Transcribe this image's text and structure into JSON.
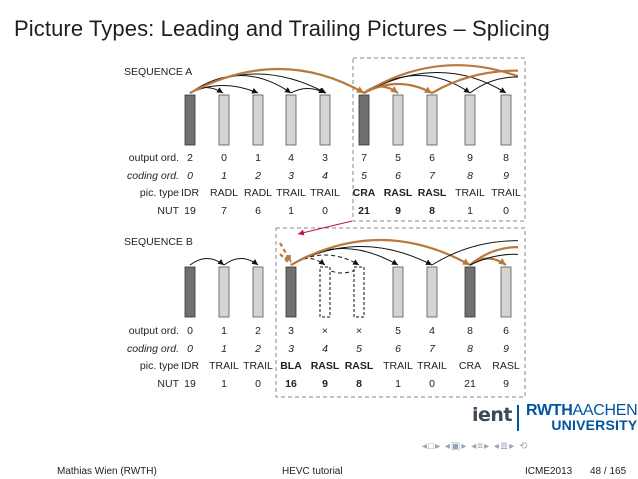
{
  "title": "Picture Types: Leading and Trailing Pictures – Splicing",
  "sequence_a": {
    "label": "SEQUENCE A",
    "row_labels": [
      "output ord.",
      "coding ord.",
      "pic. type",
      "NUT"
    ],
    "output_ord": [
      "2",
      "0",
      "1",
      "4",
      "3",
      "7",
      "5",
      "6",
      "9",
      "8"
    ],
    "coding_ord": [
      "0",
      "1",
      "2",
      "3",
      "4",
      "5",
      "6",
      "7",
      "8",
      "9"
    ],
    "pic_type": [
      "IDR",
      "RADL",
      "RADL",
      "TRAIL",
      "TRAIL",
      "CRA",
      "RASL",
      "RASL",
      "TRAIL",
      "TRAIL"
    ],
    "nut": [
      "19",
      "7",
      "6",
      "1",
      "0",
      "21",
      "9",
      "8",
      "1",
      "0"
    ]
  },
  "sequence_b": {
    "label": "SEQUENCE B",
    "row_labels": [
      "output ord.",
      "coding ord.",
      "pic. type",
      "NUT"
    ],
    "output_ord": [
      "0",
      "1",
      "2",
      "3",
      "×",
      "×",
      "5",
      "4",
      "8",
      "6"
    ],
    "coding_ord": [
      "0",
      "1",
      "2",
      "3",
      "4",
      "5",
      "6",
      "7",
      "8",
      "9"
    ],
    "pic_type": [
      "IDR",
      "TRAIL",
      "TRAIL",
      "BLA",
      "RASL",
      "RASL",
      "TRAIL",
      "TRAIL",
      "CRA",
      "RASL"
    ],
    "nut": [
      "19",
      "1",
      "0",
      "16",
      "9",
      "8",
      "1",
      "0",
      "21",
      "9"
    ]
  },
  "colors": {
    "irap": "#707070",
    "picture": "#d4d4d4",
    "leading_arrow": "#b9793e",
    "splice_arrow": "#c0143c",
    "dashed_box": "#8a8a8a"
  },
  "logos": {
    "int": "ient",
    "rwth": "RWTH",
    "aachen": "AACHEN",
    "university": "UNIVERSITY"
  },
  "footer": {
    "author": "Mathias Wien  (RWTH)",
    "talk": "HEVC tutorial",
    "event": "ICME2013",
    "page": "48 / 165"
  }
}
